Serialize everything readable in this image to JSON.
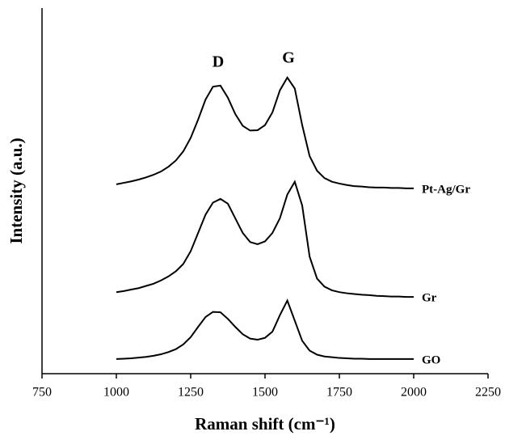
{
  "chart_data": {
    "type": "line",
    "x_label": "Raman shift (cm⁻¹)",
    "y_label": "Intensity (a.u.)",
    "annotations": [
      "D",
      "G"
    ],
    "x": [
      1000,
      1025,
      1050,
      1075,
      1100,
      1125,
      1150,
      1175,
      1200,
      1225,
      1250,
      1275,
      1300,
      1325,
      1350,
      1375,
      1400,
      1425,
      1450,
      1475,
      1500,
      1525,
      1550,
      1575,
      1600,
      1625,
      1650,
      1675,
      1700,
      1725,
      1750,
      1775,
      1800,
      1825,
      1850,
      1875,
      1900,
      1925,
      1950,
      1975,
      2000
    ],
    "series": [
      {
        "name": "Pt-Ag/Gr",
        "color": "#000000",
        "values": [
          51.8,
          52.2,
          52.6,
          53.1,
          53.7,
          54.4,
          55.3,
          56.6,
          58.3,
          60.8,
          64.5,
          69.5,
          75,
          78.5,
          78.8,
          75.5,
          71,
          67.8,
          66.5,
          66.6,
          68,
          71.5,
          77.5,
          81,
          78,
          68,
          59.5,
          55.5,
          53.5,
          52.5,
          52,
          51.6,
          51.3,
          51.2,
          51,
          50.9,
          50.9,
          50.8,
          50.8,
          50.7,
          50.7
        ]
      },
      {
        "name": "Gr",
        "color": "#000000",
        "values": [
          22.3,
          22.6,
          23,
          23.4,
          24,
          24.6,
          25.5,
          26.6,
          28,
          30,
          33.5,
          38.5,
          43.5,
          46.8,
          47.8,
          46.5,
          42.5,
          38.5,
          36,
          35.4,
          36.2,
          38.5,
          42.5,
          49,
          52.5,
          46,
          32,
          26,
          23.8,
          22.8,
          22.3,
          22,
          21.8,
          21.6,
          21.5,
          21.3,
          21.2,
          21.1,
          21.1,
          21,
          21
        ]
      },
      {
        "name": "GO",
        "color": "#000000",
        "values": [
          4,
          4.1,
          4.2,
          4.4,
          4.6,
          4.9,
          5.3,
          5.9,
          6.7,
          8,
          10,
          12.8,
          15.5,
          16.9,
          16.8,
          15,
          12.8,
          10.8,
          9.6,
          9.3,
          9.8,
          11.5,
          16,
          20,
          14.5,
          9,
          6.3,
          5.2,
          4.7,
          4.5,
          4.3,
          4.2,
          4.1,
          4.1,
          4,
          4,
          4,
          4,
          4,
          4,
          4
        ]
      }
    ],
    "xlim": [
      750,
      2250
    ],
    "xticks": [
      750,
      1000,
      1250,
      1500,
      1750,
      2000,
      2250
    ],
    "ylim": [
      0,
      100
    ],
    "grid": false
  }
}
